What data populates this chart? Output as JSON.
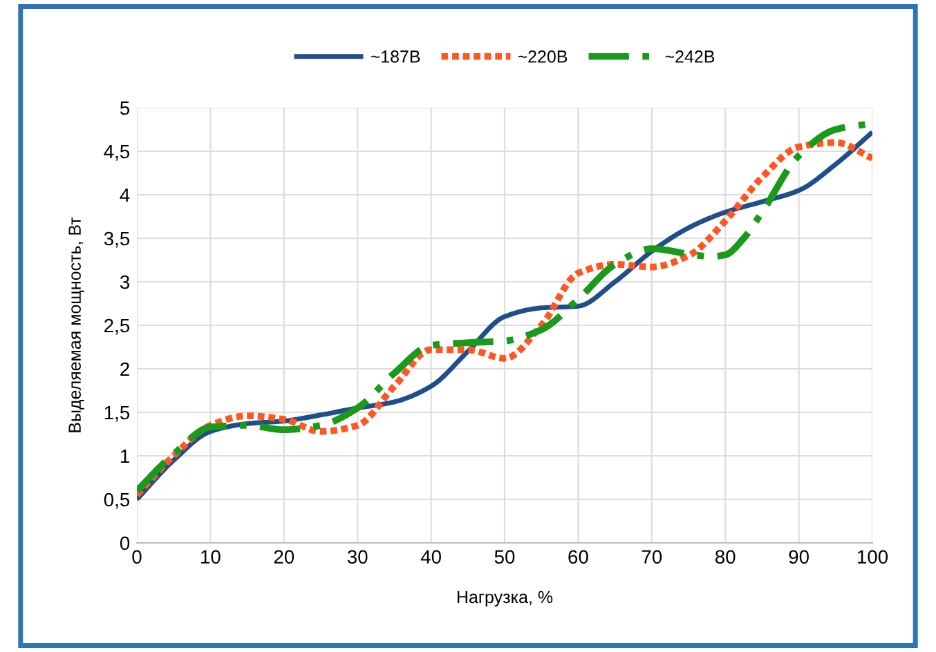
{
  "chart_data": {
    "type": "line",
    "xlabel": "Нагрузка, %",
    "ylabel": "Выделяемая мощность, Вт",
    "x": [
      0,
      5,
      10,
      15,
      20,
      25,
      30,
      35,
      40,
      45,
      50,
      55,
      60,
      65,
      70,
      75,
      80,
      85,
      90,
      95,
      100
    ],
    "series": [
      {
        "name": "~187В",
        "color": "#1f4e8c",
        "line_style": "solid",
        "values": [
          0.5,
          0.95,
          1.28,
          1.37,
          1.4,
          1.47,
          1.55,
          1.62,
          1.8,
          2.2,
          2.6,
          2.7,
          2.72,
          3.0,
          3.35,
          3.62,
          3.8,
          3.92,
          4.05,
          4.35,
          4.72
        ]
      },
      {
        "name": "~220В",
        "color": "#ff5722",
        "line_style": "dotted",
        "values": [
          0.55,
          1.0,
          1.35,
          1.46,
          1.42,
          1.28,
          1.35,
          1.8,
          2.22,
          2.22,
          2.12,
          2.5,
          3.1,
          3.2,
          3.17,
          3.3,
          3.7,
          4.2,
          4.55,
          4.6,
          4.42
        ]
      },
      {
        "name": "~242В",
        "color": "#1a9a1a",
        "line_style": "dashed",
        "x": [
          0,
          5,
          10,
          15,
          20,
          25,
          30,
          35,
          40,
          45,
          50,
          55,
          60,
          65,
          70,
          75,
          78,
          80,
          82.5,
          85,
          90,
          95,
          100
        ],
        "values": [
          0.6,
          1.02,
          1.33,
          1.35,
          1.3,
          1.35,
          1.55,
          1.95,
          2.27,
          2.3,
          2.32,
          2.45,
          2.8,
          3.2,
          3.38,
          3.32,
          3.29,
          3.31,
          3.5,
          3.8,
          4.45,
          4.75,
          4.82
        ]
      }
    ],
    "xlim": [
      0,
      100
    ],
    "xticks": [
      0,
      10,
      20,
      30,
      40,
      50,
      60,
      70,
      80,
      90,
      100
    ],
    "ylim": [
      0,
      5
    ],
    "yticks": [
      0,
      {
        "value": 0.5,
        "label": "0,5"
      },
      1,
      {
        "value": 1.5,
        "label": "1,5"
      },
      2,
      {
        "value": 2.5,
        "label": "2,5"
      },
      3,
      {
        "value": 3.5,
        "label": "3,5"
      },
      4,
      {
        "value": 4.5,
        "label": "4,5"
      },
      5
    ],
    "grid": true,
    "legend": "top",
    "marker": "none"
  }
}
